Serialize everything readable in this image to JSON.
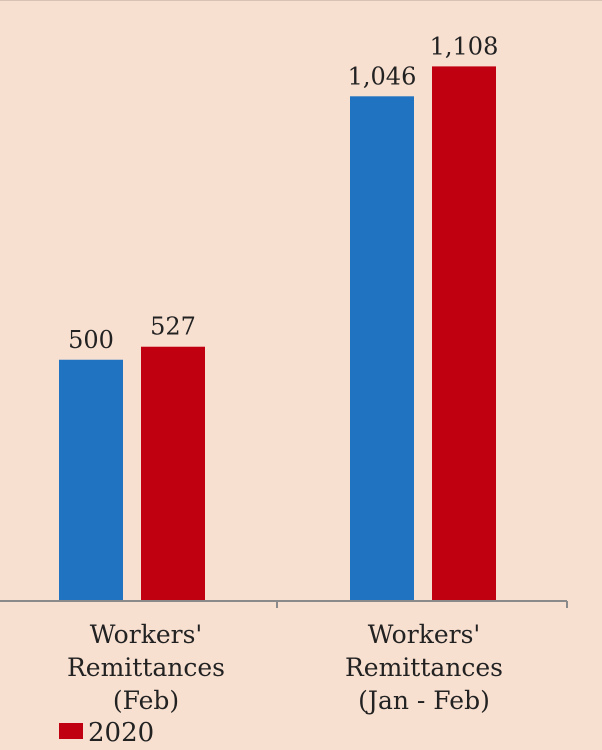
{
  "colors": {
    "background": "#f8e0d1",
    "series_2019": "#1f73c1",
    "series_2020": "#c00010",
    "axis": "#8a8a8a"
  },
  "chart_data": {
    "type": "bar",
    "categories": [
      [
        "Workers'",
        "Remittances",
        "(Feb)"
      ],
      [
        "Workers'",
        "Remittances",
        "(Jan - Feb)"
      ]
    ],
    "series": [
      {
        "values": [
          500,
          1046
        ],
        "value_labels": [
          "500",
          "1,046"
        ]
      },
      {
        "name": "2020",
        "values": [
          527,
          1108
        ],
        "value_labels": [
          "527",
          "1,108"
        ]
      }
    ],
    "legend": {
      "position": "bottom-left",
      "entries": [
        "2020"
      ]
    },
    "ylim": [
      0,
      1200
    ],
    "grid": false
  }
}
